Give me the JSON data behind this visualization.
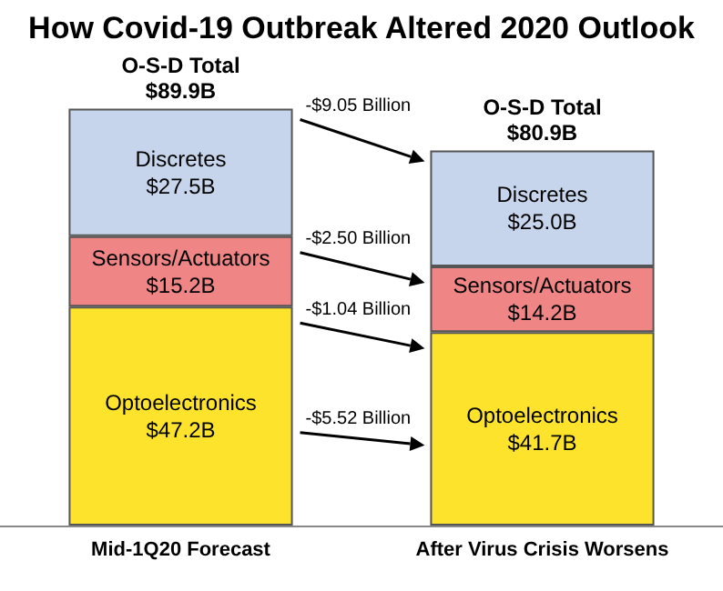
{
  "chart_data": {
    "type": "bar",
    "title": "How Covid-19 Outbreak Altered 2020 Outlook",
    "categories": [
      "Mid-1Q20 Forecast",
      "After Virus Crisis Worsens"
    ],
    "stacked": true,
    "tick_labels": "x",
    "legend": false,
    "series": [
      {
        "name": "Optoelectronics",
        "color": "#fde32c",
        "values": [
          47.2,
          41.7
        ],
        "value_labels": [
          "$47.2B",
          "$41.7B"
        ]
      },
      {
        "name": "Sensors/Actuators",
        "color": "#ef8585",
        "values": [
          15.2,
          14.2
        ],
        "value_labels": [
          "$15.2B",
          "$14.2B"
        ]
      },
      {
        "name": "Discretes",
        "color": "#c6d5ec",
        "values": [
          27.5,
          25.0
        ],
        "value_labels": [
          "$27.5B",
          "$25.0B"
        ]
      }
    ],
    "totals": [
      "O-S-D Total\n$89.9B",
      "O-S-D Total\n$80.9B"
    ],
    "annotations": [
      "-$9.05 Billion",
      "-$2.50 Billion",
      "-$1.04 Billion",
      "-$5.52 Billion"
    ]
  }
}
